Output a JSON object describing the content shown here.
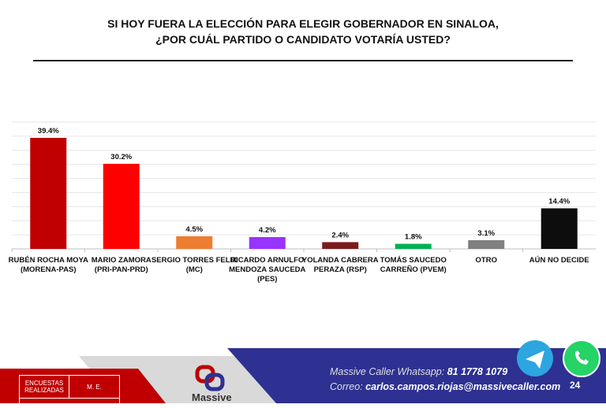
{
  "header": {
    "title_line1": "SI HOY FUERA LA ELECCIÓN PARA ELEGIR GOBERNADOR EN SINALOA,",
    "title_line2": "¿POR CUÁL PARTIDO O CANDIDATO VOTARÍA USTED?"
  },
  "chart_data": {
    "type": "bar",
    "title": "SI HOY FUERA LA ELECCIÓN PARA ELEGIR GOBERNADOR EN SINALOA, ¿POR CUÁL PARTIDO O CANDIDATO VOTARÍA USTED?",
    "categories": [
      [
        "RUBÉN ROCHA MOYA",
        "(MORENA-PAS)"
      ],
      [
        "MARIO ZAMORA",
        "(PRI-PAN-PRD)"
      ],
      [
        "SERGIO TORRES FELIX",
        "(MC)"
      ],
      [
        "RICARDO ARNULFO",
        "MENDOZA SAUCEDA",
        "(PES)"
      ],
      [
        "YOLANDA CABRERA",
        "PERAZA (RSP)"
      ],
      [
        "TOMÁS SAUCEDO",
        "CARREÑO (PVEM)"
      ],
      [
        "OTRO"
      ],
      [
        "AÚN NO DECIDE"
      ]
    ],
    "values": [
      39.4,
      30.2,
      4.5,
      4.2,
      2.4,
      1.8,
      3.1,
      14.4
    ],
    "labels": [
      "39.4%",
      "30.2%",
      "4.5%",
      "4.2%",
      "2.4%",
      "1.8%",
      "3.1%",
      "14.4%"
    ],
    "colors": [
      "#c00000",
      "#ff0000",
      "#ed7d31",
      "#9933ff",
      "#7b1c1c",
      "#00b050",
      "#808080",
      "#0d0d0d"
    ],
    "ylim": [
      0,
      45
    ],
    "grid": true
  },
  "footer": {
    "whatsapp_label": "Massive Caller Whatsapp:",
    "whatsapp_number": "81 1778 1079",
    "email_label": "Correo:",
    "email": "carlos.campos.riojas@massivecaller.com",
    "page_number": "24",
    "logo_text": "Massive",
    "table_col1": "ENCUESTAS REALIZADAS",
    "table_col2": "M. E."
  }
}
